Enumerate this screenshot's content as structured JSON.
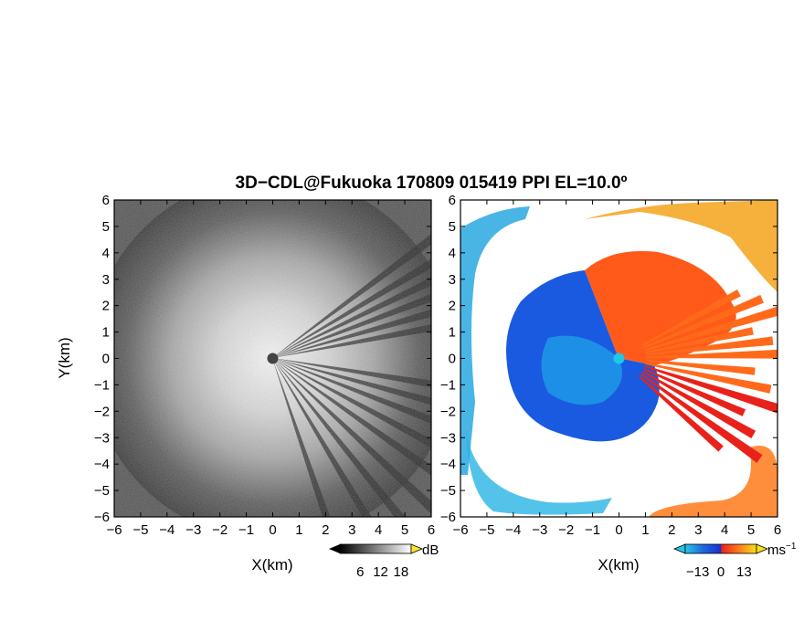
{
  "figure": {
    "title": "3D−CDL@Fukuoka 170809 015419 PPI EL=10.0º"
  },
  "chart_data": [
    {
      "type": "heatmap",
      "panel": "reflectivity",
      "xlabel": "X(km)",
      "ylabel": "Y(km)",
      "xlim": [
        -6,
        6
      ],
      "ylim": [
        -6,
        6
      ],
      "x_ticks": [
        "−6",
        "−5",
        "−4",
        "−3",
        "−2",
        "−1",
        "0",
        "1",
        "2",
        "3",
        "4",
        "5",
        "6"
      ],
      "y_ticks": [
        "−6",
        "−5",
        "−4",
        "−3",
        "−2",
        "−1",
        "0",
        "1",
        "2",
        "3",
        "4",
        "5",
        "6"
      ],
      "colormap": "grayscale",
      "colorbar": {
        "unit": "dB",
        "ticks": [
          "6",
          "12",
          "18"
        ],
        "range": [
          0,
          21
        ]
      },
      "radar_site": [
        0,
        0
      ]
    },
    {
      "type": "heatmap",
      "panel": "doppler-velocity",
      "xlabel": "X(km)",
      "xlim": [
        -6,
        6
      ],
      "ylim": [
        -6,
        6
      ],
      "x_ticks": [
        "−6",
        "−5",
        "−4",
        "−3",
        "−2",
        "−1",
        "0",
        "1",
        "2",
        "3",
        "4",
        "5",
        "6"
      ],
      "y_ticks": [
        "−6",
        "−5",
        "−4",
        "−3",
        "−2",
        "−1",
        "0",
        "1",
        "2",
        "3",
        "4",
        "5",
        "6"
      ],
      "colormap": "blue-red",
      "colorbar": {
        "unit": "ms",
        "unit_exp": "−1",
        "ticks": [
          "−13",
          "0",
          "13"
        ],
        "range": [
          -20,
          20
        ]
      },
      "radar_site": [
        0,
        0
      ]
    }
  ],
  "colors": {
    "approaching_deep": "#1a3fd6",
    "approaching_light": "#29a8e0",
    "receding_orange": "#ff6a1a",
    "receding_red": "#e8221a",
    "receding_yellow": "#f2c21a",
    "site_gray": "#444444",
    "site_cyan": "#1ec8e6"
  }
}
